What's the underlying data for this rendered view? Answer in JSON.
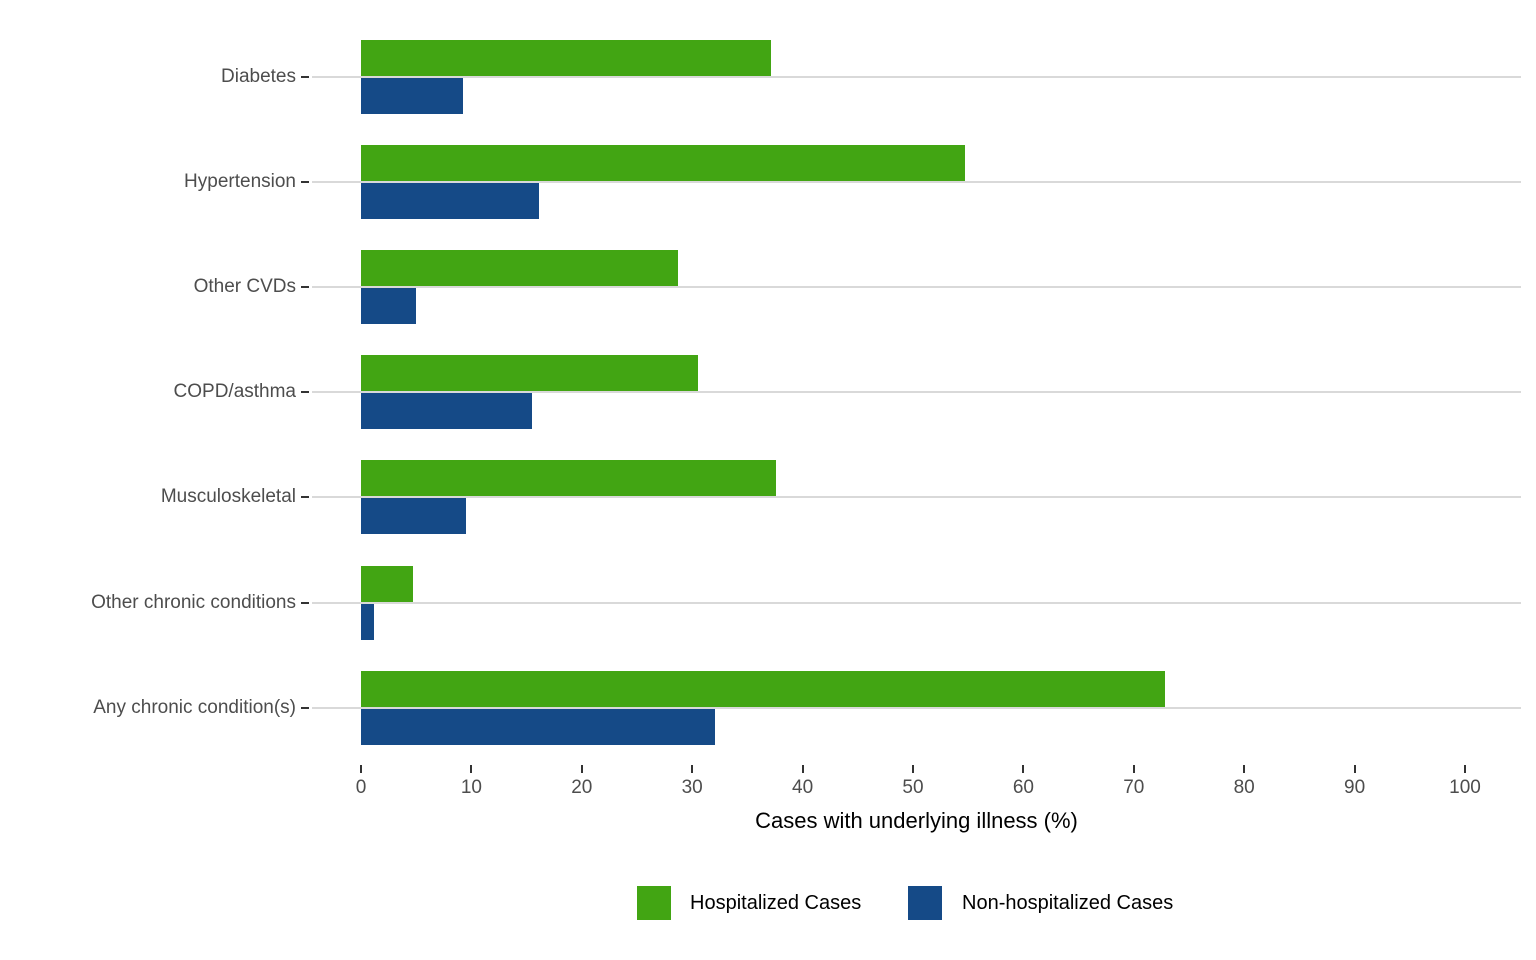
{
  "chart_data": {
    "type": "bar",
    "orientation": "horizontal",
    "title": "",
    "xlabel": "Cases with underlying illness (%)",
    "ylabel": "",
    "xlim": [
      0,
      100
    ],
    "x_ticks": [
      0,
      10,
      20,
      30,
      40,
      50,
      60,
      70,
      80,
      90,
      100
    ],
    "grid": "horizontal category gridlines only",
    "legend_position": "bottom",
    "categories": [
      "Diabetes",
      "Hypertension",
      "Other CVDs",
      "COPD/asthma",
      "Musculoskeletal",
      "Other chronic conditions",
      "Any chronic condition(s)"
    ],
    "series": [
      {
        "name": "Hospitalized Cases",
        "color": "#42a513",
        "values": [
          37.1,
          54.7,
          28.7,
          30.5,
          37.6,
          4.7,
          72.8
        ]
      },
      {
        "name": "Non-hospitalized Cases",
        "color": "#154a87",
        "values": [
          9.2,
          16.1,
          5.0,
          15.5,
          9.5,
          1.2,
          32.1
        ]
      }
    ]
  },
  "colors": {
    "background": "#ffffff",
    "gridline": "#d9d9d9",
    "axis_text": "#4d4d4d",
    "tick_mark": "#333333",
    "title_text": "#000000",
    "legend_text": "#000000"
  }
}
